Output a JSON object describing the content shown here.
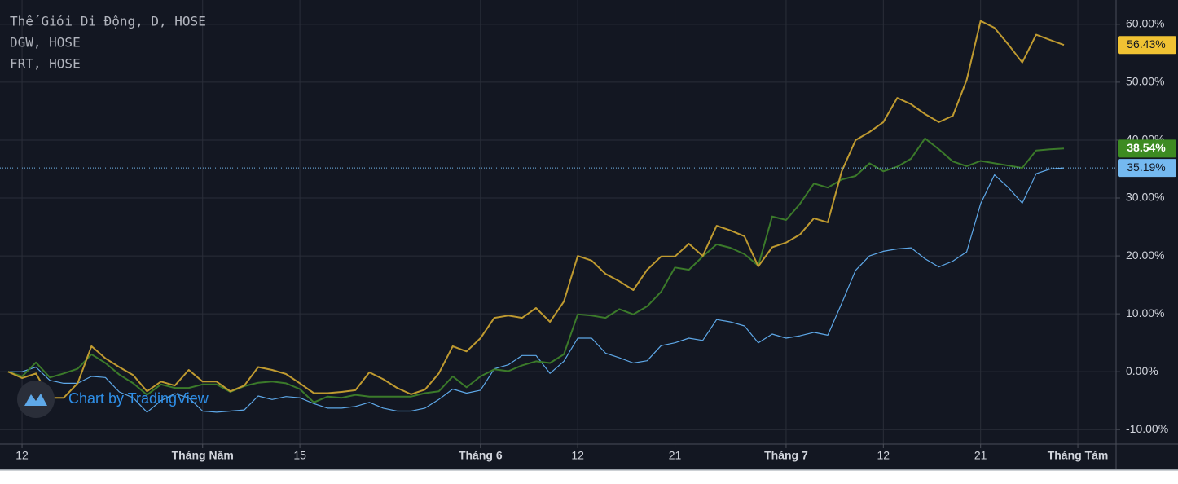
{
  "chart_data": {
    "type": "line",
    "watermark": "Chart by TradingView",
    "categories": [
      null,
      "12",
      null,
      null,
      null,
      null,
      null,
      null,
      null,
      null,
      null,
      null,
      null,
      null,
      "Tháng Năm",
      null,
      null,
      null,
      null,
      null,
      null,
      "15",
      null,
      null,
      null,
      null,
      null,
      null,
      null,
      null,
      null,
      null,
      null,
      null,
      "Tháng 6",
      null,
      null,
      null,
      null,
      null,
      null,
      "12",
      null,
      null,
      null,
      null,
      null,
      null,
      "21",
      null,
      null,
      null,
      null,
      null,
      null,
      null,
      "Tháng 7",
      null,
      null,
      null,
      null,
      null,
      null,
      "12",
      null,
      null,
      null,
      null,
      null,
      null,
      "21",
      null,
      null,
      null,
      null,
      null,
      null,
      "Tháng Tám"
    ],
    "series": [
      {
        "name": "DGW, HOSE",
        "color": "#bf9a30",
        "badge_color": "#f0c233",
        "values": [
          0,
          -1.1,
          -0.3,
          -4.5,
          -4.5,
          -2,
          4.4,
          2.3,
          0.8,
          -0.6,
          -3.4,
          -1.7,
          -2.4,
          0.3,
          -1.7,
          -1.7,
          -3.4,
          -2.4,
          0.8,
          0.3,
          -0.4,
          -2,
          -3.7,
          -3.7,
          -3.5,
          -3.2,
          -0.1,
          -1.3,
          -2.8,
          -3.9,
          -3.1,
          -0.3,
          4.4,
          3.5,
          5.8,
          9.3,
          9.7,
          9.3,
          11,
          8.6,
          12.1,
          20,
          19.2,
          16.9,
          15.6,
          14.1,
          17.6,
          19.9,
          19.9,
          22.1,
          20,
          25.2,
          24.4,
          23.4,
          18.2,
          21.5,
          22.3,
          23.7,
          26.5,
          25.8,
          34.6,
          40,
          41.4,
          43.1,
          47.3,
          46.2,
          44.5,
          43.1,
          44.2,
          50.4,
          60.6,
          59.4,
          56.5,
          53.4,
          58.2,
          57.3,
          56.43,
          null
        ],
        "value_labels": {
          "76": "56.43%"
        }
      },
      {
        "name": "FRT, HOSE",
        "color": "#3b7a2a",
        "badge_color": "#3d8b22",
        "values": [
          0,
          -0.8,
          1.6,
          -1,
          -0.3,
          0.5,
          3,
          1.5,
          -0.5,
          -2,
          -4,
          -2.2,
          -2.8,
          -2.8,
          -2.2,
          -2.2,
          -3.5,
          -2.5,
          -1.9,
          -1.7,
          -2,
          -3,
          -5.3,
          -4.3,
          -4.5,
          -4,
          -4.3,
          -4.3,
          -4.3,
          -4.3,
          -3.7,
          -3.4,
          -0.8,
          -2.7,
          -0.8,
          0.4,
          0.1,
          1.1,
          1.8,
          1.5,
          3,
          9.9,
          9.7,
          9.3,
          10.8,
          9.9,
          11.3,
          13.8,
          18,
          17.6,
          19.9,
          22,
          21.4,
          20.3,
          18.3,
          26.8,
          26.2,
          29,
          32.5,
          31.8,
          33.2,
          33.8,
          36,
          34.6,
          35.4,
          36.8,
          40.3,
          38.4,
          36.3,
          35.5,
          36.4,
          36,
          35.6,
          35.2,
          38.2,
          38.4,
          38.54,
          null
        ],
        "value_labels": {
          "76": "38.54%"
        }
      },
      {
        "name": "Thế Giới Di Động, D, HOSE",
        "color": "#5ea8e8",
        "badge_color": "#74b9f0",
        "values": [
          0,
          0,
          0.8,
          -1.5,
          -2,
          -2,
          -0.8,
          -1,
          -3.5,
          -4.5,
          -7,
          -5,
          -3.8,
          -4.5,
          -6.8,
          -7,
          -6.8,
          -6.6,
          -4.2,
          -4.8,
          -4.3,
          -4.5,
          -5.5,
          -6.3,
          -6.3,
          -6,
          -5.3,
          -6.3,
          -6.8,
          -6.8,
          -6.3,
          -4.8,
          -3,
          -3.7,
          -3.2,
          0.5,
          1.2,
          2.8,
          2.8,
          -0.3,
          1.8,
          5.8,
          5.8,
          3.2,
          2.4,
          1.5,
          1.9,
          4.5,
          5,
          5.8,
          5.4,
          9,
          8.6,
          7.9,
          5,
          6.5,
          5.8,
          6.2,
          6.8,
          6.3,
          11.8,
          17.5,
          20,
          20.8,
          21.2,
          21.4,
          19.5,
          18.1,
          19.1,
          20.7,
          29,
          34,
          31.8,
          29.1,
          34.2,
          35,
          35.19,
          null
        ],
        "value_labels": {
          "76": "35.19%"
        },
        "price_line": true
      }
    ],
    "ylim": [
      -12.5,
      64.2
    ],
    "yticks": [
      {
        "value": -10,
        "label": "-10.00%"
      },
      {
        "value": 0,
        "label": "0.00%"
      },
      {
        "value": 10,
        "label": "10.00%"
      },
      {
        "value": 20,
        "label": "20.00%"
      },
      {
        "value": 30,
        "label": "30.00%"
      },
      {
        "value": 40,
        "label": "40.00%"
      },
      {
        "value": 50,
        "label": "50.00%"
      },
      {
        "value": 60,
        "label": "60.00%"
      }
    ],
    "grid": true
  }
}
